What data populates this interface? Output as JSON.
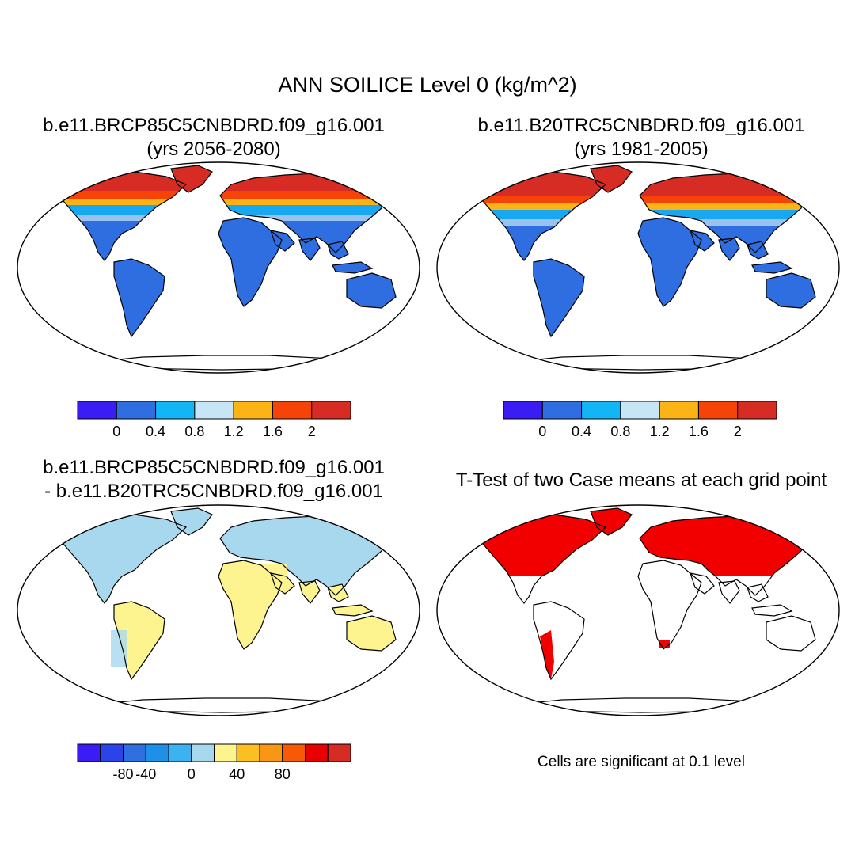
{
  "title": "ANN SOILICE Level 0 (kg/m^2)",
  "panels": [
    {
      "id": "p1",
      "title_line1": "b.e11.BRCP85C5CNBDRD.f09_g16.001",
      "title_line2": "(yrs 2056-2080)",
      "type": "field"
    },
    {
      "id": "p2",
      "title_line1": "b.e11.B20TRC5CNBDRD.f09_g16.001",
      "title_line2": "(yrs 1981-2005)",
      "type": "field"
    },
    {
      "id": "p3",
      "title_line1": "b.e11.BRCP85C5CNBDRD.f09_g16.001",
      "title_line2": "- b.e11.B20TRC5CNBDRD.f09_g16.001",
      "type": "difference"
    },
    {
      "id": "p4",
      "title_line1": "T-Test of two Case means at each grid point",
      "type": "significance"
    }
  ],
  "colorbar_field": {
    "colors": [
      "#3a1df5",
      "#2f6ee0",
      "#12b6f5",
      "#c7e6f5",
      "#fbb315",
      "#f64408",
      "#d62c24"
    ],
    "tick_labels": [
      "0",
      "0.4",
      "0.8",
      "1.2",
      "1.6",
      "2"
    ]
  },
  "colorbar_diff": {
    "colors": [
      "#3a1df5",
      "#2a44ea",
      "#2f70e0",
      "#1e90e8",
      "#3cb3f0",
      "#a8d8ee",
      "#fdf38f",
      "#fbbf22",
      "#f99614",
      "#f65a06",
      "#e80000",
      "#d62c24"
    ],
    "tick_labels": [
      "-80",
      "-40",
      "0",
      "40",
      "80"
    ]
  },
  "significance_note": "Cells are significant at 0.1 level",
  "colors": {
    "land_low": "#2f6ee0",
    "significant": "#f20000",
    "diff_neg": "#a8d8ee",
    "diff_pos": "#fdf38f"
  }
}
